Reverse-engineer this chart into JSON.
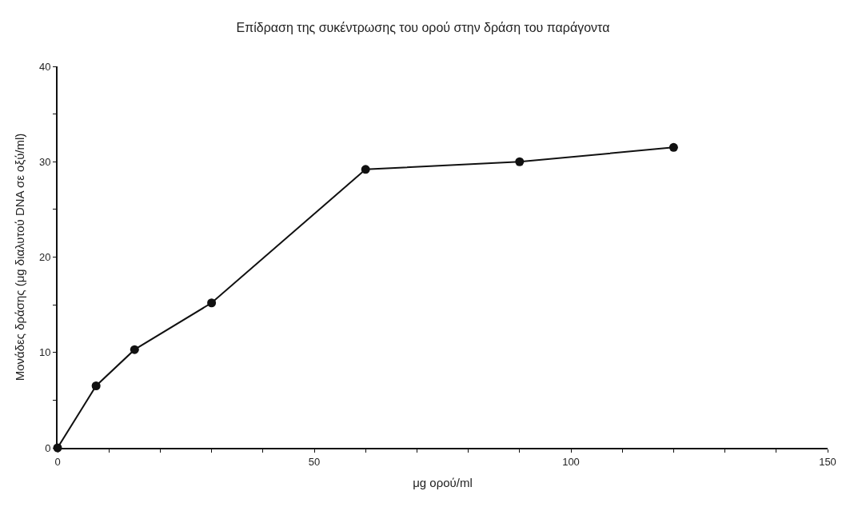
{
  "chart_data": {
    "type": "line",
    "title": "Επίδραση της συκέντρωσης του ορού στην δράση του παράγοντα",
    "xlabel": "μg ορού/ml",
    "ylabel": "Μονάδες δράσης (μg διαλυτού DNA σε οξύ/ml)",
    "x": [
      0,
      7.5,
      15,
      30,
      60,
      90,
      120
    ],
    "series": [
      {
        "color": "#111111",
        "values": [
          0,
          6.5,
          10.3,
          15.2,
          29.2,
          30.0,
          31.5
        ]
      }
    ],
    "xlim": [
      0,
      150
    ],
    "ylim": [
      0,
      40
    ],
    "xticks": [
      0,
      {
        "value": 10,
        "label": null
      },
      {
        "value": 20,
        "label": null
      },
      {
        "value": 30,
        "label": null
      },
      {
        "value": 40,
        "label": null
      },
      50,
      {
        "value": 60,
        "label": null
      },
      {
        "value": 70,
        "label": null
      },
      {
        "value": 80,
        "label": null
      },
      {
        "value": 90,
        "label": null
      },
      100,
      {
        "value": 110,
        "label": null
      },
      {
        "value": 120,
        "label": null
      },
      {
        "value": 130,
        "label": null
      },
      {
        "value": 140,
        "label": null
      },
      150
    ],
    "yticks": [
      0,
      {
        "value": 5,
        "label": null
      },
      10,
      {
        "value": 15,
        "label": null
      },
      20,
      {
        "value": 25,
        "label": null
      },
      30,
      {
        "value": 35,
        "label": null
      },
      40
    ],
    "marker": "circle",
    "line_style": "solid"
  }
}
